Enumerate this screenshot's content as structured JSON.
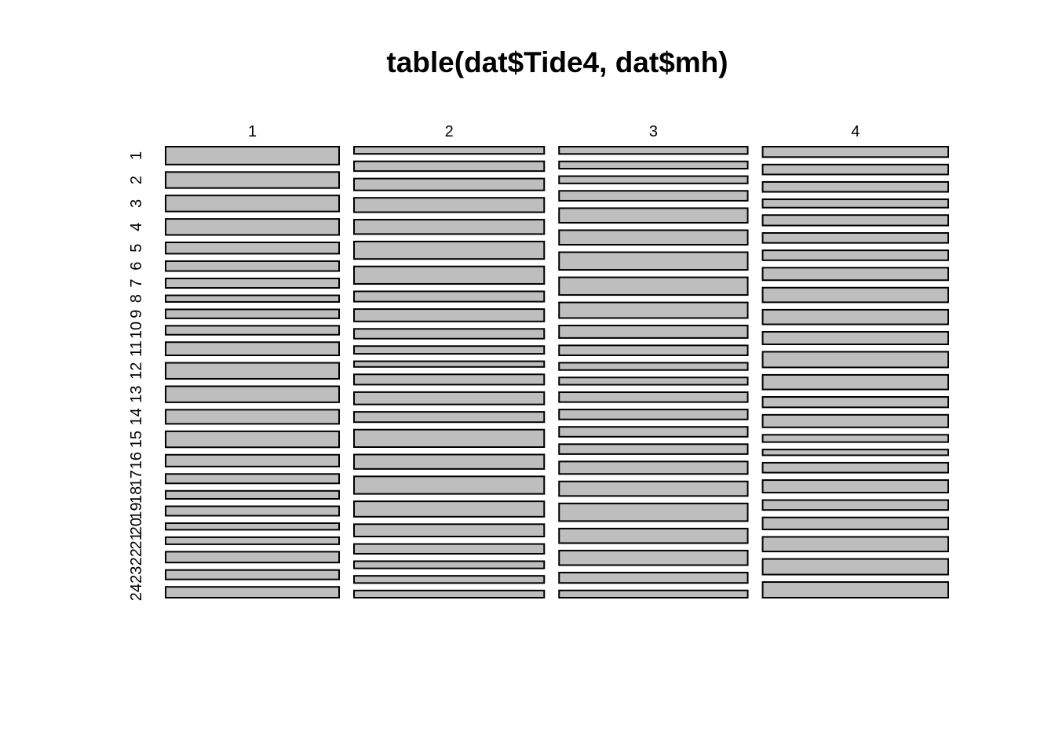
{
  "chart_data": {
    "type": "mosaic",
    "title": "table(dat$Tide4, dat$mh)",
    "columns": [
      "1",
      "2",
      "3",
      "4"
    ],
    "rows": [
      "1",
      "2",
      "3",
      "4",
      "5",
      "6",
      "7",
      "8",
      "9",
      "10",
      "11",
      "12",
      "13",
      "14",
      "15",
      "16",
      "17",
      "18",
      "19",
      "20",
      "21",
      "22",
      "23",
      "24"
    ],
    "column_proportions": [
      0.229,
      0.251,
      0.249,
      0.245
    ],
    "cell_proportions": [
      [
        0.038,
        0.034,
        0.034,
        0.034,
        0.024,
        0.021,
        0.02,
        0.014,
        0.019,
        0.019,
        0.028,
        0.034,
        0.034,
        0.03,
        0.034,
        0.025,
        0.02,
        0.017,
        0.02,
        0.014,
        0.015,
        0.023,
        0.02,
        0.023
      ],
      [
        0.014,
        0.019,
        0.023,
        0.028,
        0.028,
        0.034,
        0.034,
        0.02,
        0.024,
        0.019,
        0.015,
        0.011,
        0.02,
        0.024,
        0.02,
        0.034,
        0.028,
        0.034,
        0.03,
        0.024,
        0.019,
        0.014,
        0.014,
        0.014
      ],
      [
        0.014,
        0.014,
        0.014,
        0.019,
        0.028,
        0.028,
        0.034,
        0.034,
        0.03,
        0.024,
        0.019,
        0.014,
        0.014,
        0.019,
        0.019,
        0.019,
        0.019,
        0.024,
        0.028,
        0.034,
        0.028,
        0.028,
        0.02,
        0.014
      ],
      [
        0.02,
        0.019,
        0.019,
        0.016,
        0.02,
        0.019,
        0.019,
        0.024,
        0.028,
        0.028,
        0.024,
        0.03,
        0.028,
        0.02,
        0.024,
        0.014,
        0.011,
        0.019,
        0.024,
        0.019,
        0.023,
        0.028,
        0.03,
        0.03
      ]
    ]
  }
}
